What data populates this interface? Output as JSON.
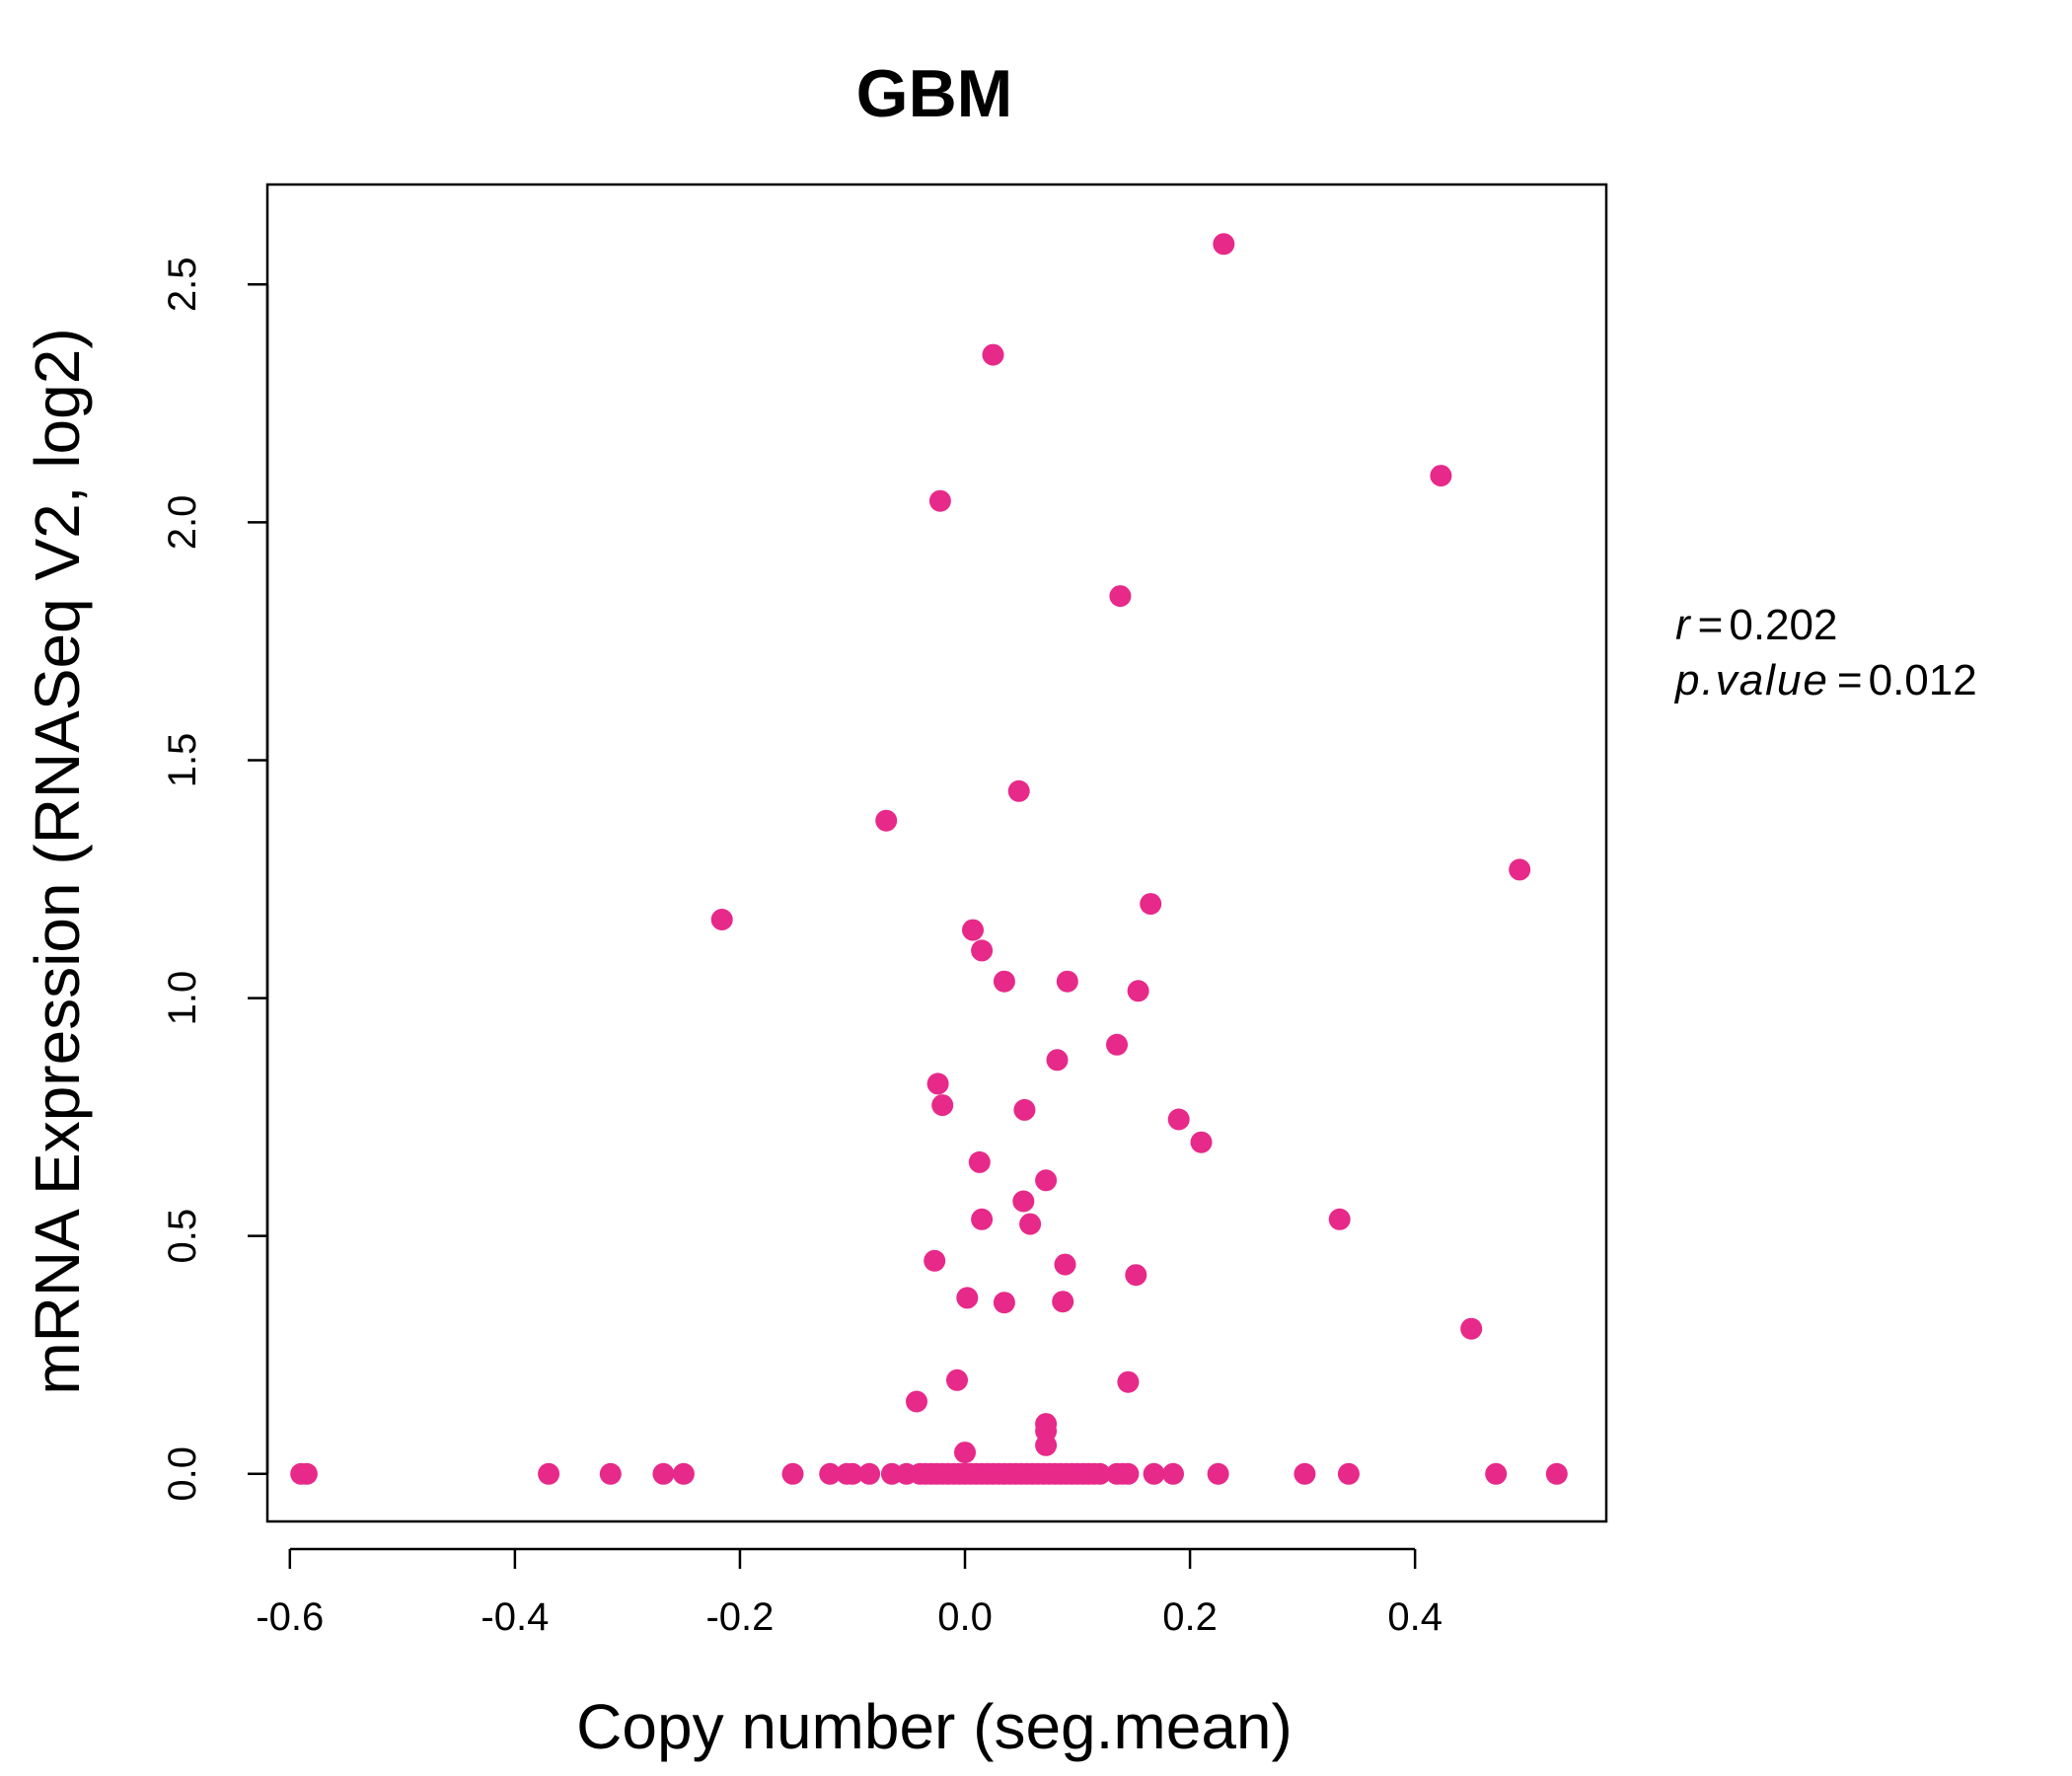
{
  "chart_data": {
    "type": "scatter",
    "title": "GBM",
    "xlabel": "Copy number (seg.mean)",
    "ylabel": "mRNA Expression (RNASeq V2, log2)",
    "xlim": [
      -0.62,
      0.57
    ],
    "ylim": [
      -0.1,
      2.71
    ],
    "xticks": [
      -0.6,
      -0.4,
      -0.2,
      0.0,
      0.2,
      0.4
    ],
    "xtick_labels": [
      "-0.6",
      "-0.4",
      "-0.2",
      "0.0",
      "0.2",
      "0.4"
    ],
    "yticks": [
      0.0,
      0.5,
      1.0,
      1.5,
      2.0,
      2.5
    ],
    "ytick_labels": [
      "0.0",
      "0.5",
      "1.0",
      "1.5",
      "2.0",
      "2.5"
    ],
    "grid": false,
    "legend": "none",
    "stats": {
      "r_label": "r",
      "r_value": "0.202",
      "p_label": "p.value",
      "p_value": "0.012"
    },
    "colors": {
      "points": "#E7298A",
      "title": "#E7298A",
      "axes": "#000000"
    },
    "points": [
      [
        -0.59,
        0.0
      ],
      [
        -0.585,
        0.0
      ],
      [
        -0.37,
        0.0
      ],
      [
        -0.315,
        0.0
      ],
      [
        -0.268,
        0.0
      ],
      [
        -0.25,
        0.0
      ],
      [
        -0.153,
        0.0
      ],
      [
        -0.12,
        0.0
      ],
      [
        -0.105,
        0.0
      ],
      [
        -0.1,
        0.0
      ],
      [
        -0.085,
        0.0
      ],
      [
        -0.065,
        0.0
      ],
      [
        -0.052,
        0.0
      ],
      [
        -0.04,
        0.0
      ],
      [
        -0.035,
        0.0
      ],
      [
        -0.03,
        0.0
      ],
      [
        -0.025,
        0.0
      ],
      [
        -0.02,
        0.0
      ],
      [
        -0.015,
        0.0
      ],
      [
        -0.01,
        0.0
      ],
      [
        -0.005,
        0.0
      ],
      [
        0.0,
        0.0
      ],
      [
        0.005,
        0.0
      ],
      [
        0.01,
        0.0
      ],
      [
        0.015,
        0.0
      ],
      [
        0.02,
        0.0
      ],
      [
        0.025,
        0.0
      ],
      [
        0.03,
        0.0
      ],
      [
        0.035,
        0.0
      ],
      [
        0.04,
        0.0
      ],
      [
        0.045,
        0.0
      ],
      [
        0.05,
        0.0
      ],
      [
        0.055,
        0.0
      ],
      [
        0.06,
        0.0
      ],
      [
        0.065,
        0.0
      ],
      [
        0.07,
        0.0
      ],
      [
        0.075,
        0.0
      ],
      [
        0.08,
        0.0
      ],
      [
        0.085,
        0.0
      ],
      [
        0.09,
        0.0
      ],
      [
        0.095,
        0.0
      ],
      [
        0.1,
        0.0
      ],
      [
        0.105,
        0.0
      ],
      [
        0.11,
        0.0
      ],
      [
        0.115,
        0.0
      ],
      [
        0.12,
        0.0
      ],
      [
        0.135,
        0.0
      ],
      [
        0.14,
        0.0
      ],
      [
        0.145,
        0.0
      ],
      [
        0.168,
        0.0
      ],
      [
        0.185,
        0.0
      ],
      [
        0.225,
        0.0
      ],
      [
        0.302,
        0.0
      ],
      [
        0.341,
        0.0
      ],
      [
        0.472,
        0.0
      ],
      [
        0.526,
        0.0
      ],
      [
        0.0,
        0.045
      ],
      [
        0.072,
        0.06
      ],
      [
        0.072,
        0.09
      ],
      [
        0.072,
        0.105
      ],
      [
        -0.043,
        0.152
      ],
      [
        -0.007,
        0.197
      ],
      [
        0.145,
        0.193
      ],
      [
        0.45,
        0.305
      ],
      [
        0.002,
        0.37
      ],
      [
        0.035,
        0.36
      ],
      [
        0.087,
        0.362
      ],
      [
        0.152,
        0.418
      ],
      [
        -0.027,
        0.448
      ],
      [
        0.089,
        0.44
      ],
      [
        0.015,
        0.535
      ],
      [
        0.058,
        0.525
      ],
      [
        0.333,
        0.535
      ],
      [
        0.052,
        0.573
      ],
      [
        0.072,
        0.617
      ],
      [
        0.013,
        0.655
      ],
      [
        0.21,
        0.697
      ],
      [
        0.19,
        0.745
      ],
      [
        0.053,
        0.765
      ],
      [
        -0.02,
        0.775
      ],
      [
        -0.024,
        0.82
      ],
      [
        0.082,
        0.87
      ],
      [
        0.135,
        0.902
      ],
      [
        0.035,
        1.035
      ],
      [
        0.091,
        1.035
      ],
      [
        0.154,
        1.015
      ],
      [
        0.015,
        1.1
      ],
      [
        0.007,
        1.143
      ],
      [
        -0.216,
        1.165
      ],
      [
        0.165,
        1.198
      ],
      [
        0.493,
        1.27
      ],
      [
        -0.07,
        1.373
      ],
      [
        0.048,
        1.435
      ],
      [
        0.138,
        1.845
      ],
      [
        -0.022,
        2.045
      ],
      [
        0.423,
        2.098
      ],
      [
        0.025,
        2.352
      ],
      [
        0.23,
        2.585
      ]
    ]
  }
}
